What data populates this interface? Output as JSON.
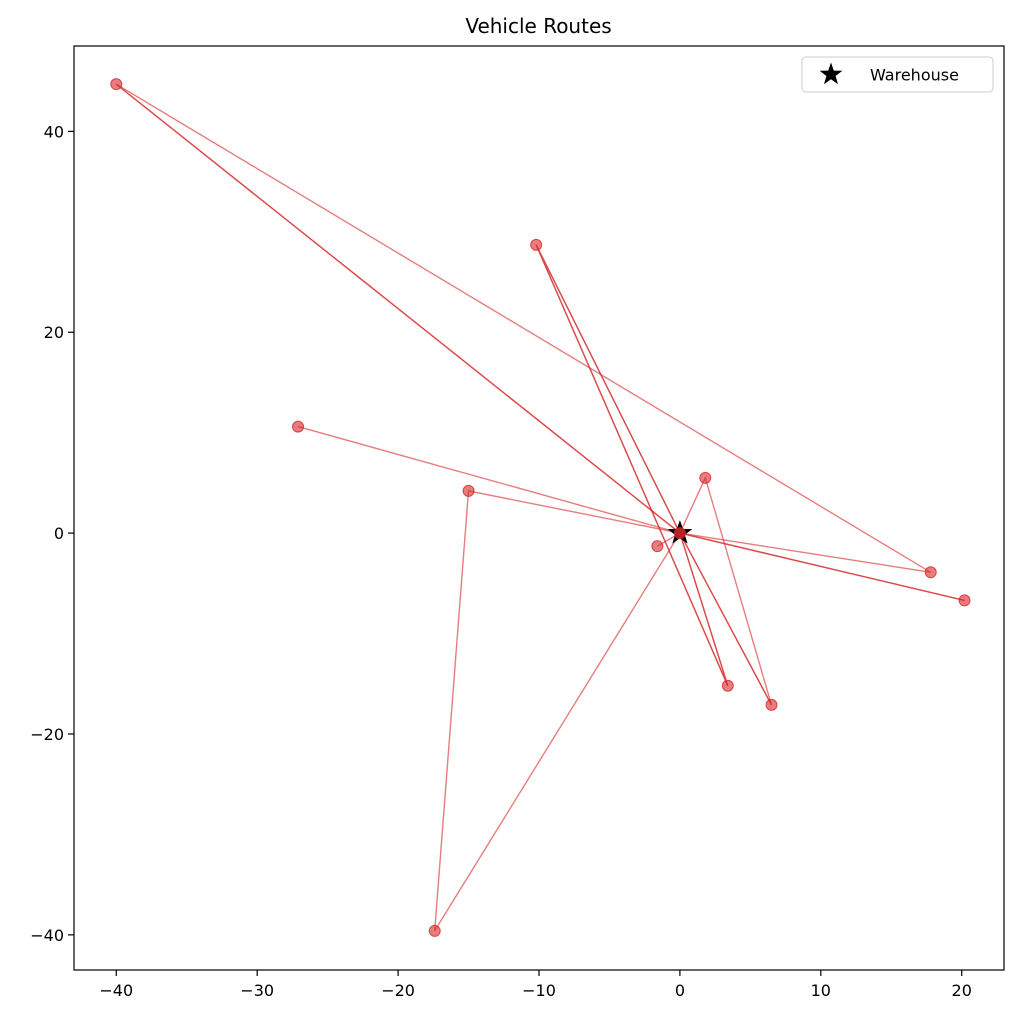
{
  "chart_data": {
    "type": "scatter",
    "title": "Vehicle Routes",
    "xlabel": "",
    "ylabel": "",
    "xlim": [
      -43,
      23
    ],
    "ylim": [
      -43.5,
      48.5
    ],
    "xticks": [
      -40,
      -30,
      -20,
      -10,
      0,
      10,
      20
    ],
    "yticks": [
      -40,
      -20,
      0,
      20,
      40
    ],
    "xtick_labels": [
      "−40",
      "−30",
      "−20",
      "−10",
      "0",
      "10",
      "20"
    ],
    "ytick_labels": [
      "−40",
      "−20",
      "0",
      "20",
      "40"
    ],
    "grid": false,
    "legend": {
      "placement": "top-right",
      "entries": [
        {
          "label": "Warehouse",
          "marker": "star",
          "color": "#000000"
        }
      ]
    },
    "warehouse": {
      "name": "Warehouse",
      "x": 0,
      "y": 0
    },
    "route_color": "#d62728",
    "routes": [
      {
        "points": [
          [
            0,
            0
          ],
          [
            -40,
            44.7
          ],
          [
            0,
            0
          ]
        ]
      },
      {
        "points": [
          [
            0,
            0
          ],
          [
            -40,
            44.7
          ],
          [
            17.8,
            -3.9
          ],
          [
            0,
            0
          ]
        ]
      },
      {
        "points": [
          [
            0,
            0
          ],
          [
            -10.2,
            28.7
          ],
          [
            3.4,
            -15.2
          ],
          [
            0,
            0
          ]
        ]
      },
      {
        "points": [
          [
            0,
            0
          ],
          [
            -10.2,
            28.7
          ],
          [
            3.4,
            -15.2
          ],
          [
            0,
            0
          ]
        ]
      },
      {
        "points": [
          [
            0,
            0
          ],
          [
            -27.1,
            10.6
          ],
          [
            0,
            0
          ]
        ]
      },
      {
        "points": [
          [
            0,
            0
          ],
          [
            -15,
            4.2
          ],
          [
            -17.4,
            -39.6
          ],
          [
            0,
            0
          ]
        ]
      },
      {
        "points": [
          [
            0,
            0
          ],
          [
            1.8,
            5.5
          ],
          [
            6.5,
            -17.1
          ],
          [
            0,
            0
          ]
        ]
      },
      {
        "points": [
          [
            0,
            0
          ],
          [
            6.5,
            -17.1
          ],
          [
            0,
            0
          ]
        ]
      },
      {
        "points": [
          [
            0,
            0
          ],
          [
            20.2,
            -6.7
          ],
          [
            0,
            0
          ]
        ]
      },
      {
        "points": [
          [
            0,
            0
          ],
          [
            20.2,
            -6.7
          ],
          [
            0,
            0
          ]
        ]
      },
      {
        "points": [
          [
            0,
            0
          ],
          [
            -1.6,
            -1.3
          ],
          [
            0,
            0
          ]
        ]
      }
    ],
    "customers": [
      {
        "x": -40,
        "y": 44.7
      },
      {
        "x": -10.2,
        "y": 28.7
      },
      {
        "x": -27.1,
        "y": 10.6
      },
      {
        "x": -15,
        "y": 4.2
      },
      {
        "x": 1.8,
        "y": 5.5
      },
      {
        "x": -1.6,
        "y": -1.3
      },
      {
        "x": 17.8,
        "y": -3.9
      },
      {
        "x": 20.2,
        "y": -6.7
      },
      {
        "x": 3.4,
        "y": -15.2
      },
      {
        "x": 6.5,
        "y": -17.1
      },
      {
        "x": -17.4,
        "y": -39.6
      }
    ]
  }
}
